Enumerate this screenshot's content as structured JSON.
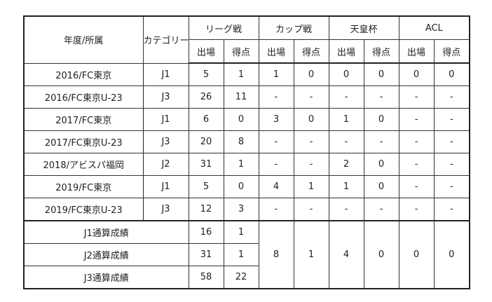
{
  "header": {
    "year_club": "年度/所属",
    "category": "カテゴリー",
    "groups": [
      "リーグ戦",
      "カップ戦",
      "天皇杯",
      "ACL"
    ],
    "apps": "出場",
    "goals": "得点"
  },
  "rows": [
    {
      "year_club": "2016/FC東京",
      "category": "J1",
      "values": [
        "5",
        "1",
        "1",
        "0",
        "0",
        "0",
        "0",
        "0"
      ]
    },
    {
      "year_club": "2016/FC東京U-23",
      "category": "J3",
      "values": [
        "26",
        "11",
        "-",
        "-",
        "-",
        "-",
        "-",
        "-"
      ]
    },
    {
      "year_club": "2017/FC東京",
      "category": "J1",
      "values": [
        "6",
        "0",
        "3",
        "0",
        "1",
        "0",
        "-",
        "-"
      ]
    },
    {
      "year_club": "2017/FC東京U-23",
      "category": "J3",
      "values": [
        "20",
        "8",
        "-",
        "-",
        "-",
        "-",
        "-",
        "-"
      ]
    },
    {
      "year_club": "2018/アビスパ福岡",
      "category": "J2",
      "values": [
        "31",
        "1",
        "-",
        "-",
        "2",
        "0",
        "-",
        "-"
      ]
    },
    {
      "year_club": "2019/FC東京",
      "category": "J1",
      "values": [
        "5",
        "0",
        "4",
        "1",
        "1",
        "0",
        "-",
        "-"
      ]
    },
    {
      "year_club": "2019/FC東京U-23",
      "category": "J3",
      "values": [
        "12",
        "3",
        "-",
        "-",
        "-",
        "-",
        "-",
        "-"
      ]
    }
  ],
  "totals": [
    {
      "label": "J1通算成績",
      "league": [
        "16",
        "1"
      ]
    },
    {
      "label": "J2通算成績",
      "league": [
        "31",
        "1"
      ]
    },
    {
      "label": "J3通算成績",
      "league": [
        "58",
        "22"
      ]
    }
  ],
  "totals_shared": [
    "8",
    "1",
    "4",
    "0",
    "0",
    "0"
  ]
}
